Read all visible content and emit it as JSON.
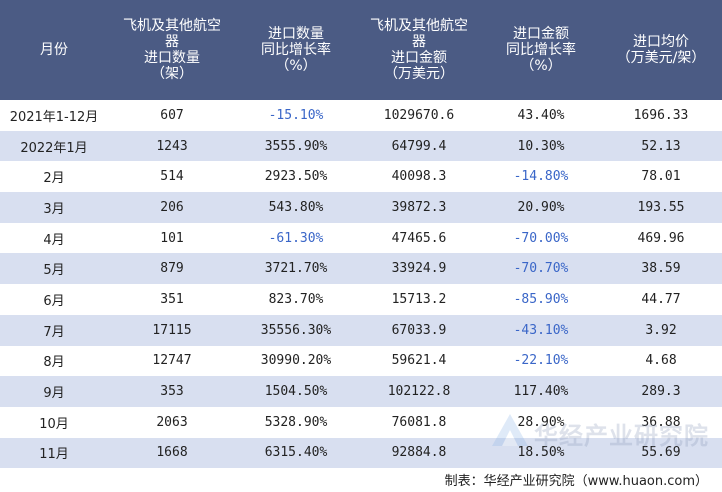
{
  "headers": [
    [
      "月份"
    ],
    [
      "飞机及其他航空",
      "器",
      "进口数量",
      "（架）"
    ],
    [
      "进口数量",
      "同比增长率",
      "（%）"
    ],
    [
      "飞机及其他航空",
      "器",
      "进口金额",
      "（万美元）"
    ],
    [
      "进口金额",
      "同比增长率",
      "（%）"
    ],
    [
      "进口均价",
      "（万美元/架）"
    ]
  ],
  "rows": [
    {
      "month": "2021年1-12月",
      "qty": "607",
      "qty_yoy": "-15.10%",
      "amount": "1029670.6",
      "amount_yoy": "43.40%",
      "price": "1696.33"
    },
    {
      "month": "2022年1月",
      "qty": "1243",
      "qty_yoy": "3555.90%",
      "amount": "64799.4",
      "amount_yoy": "10.30%",
      "price": "52.13"
    },
    {
      "month": "2月",
      "qty": "514",
      "qty_yoy": "2923.50%",
      "amount": "40098.3",
      "amount_yoy": "-14.80%",
      "price": "78.01"
    },
    {
      "month": "3月",
      "qty": "206",
      "qty_yoy": "543.80%",
      "amount": "39872.3",
      "amount_yoy": "20.90%",
      "price": "193.55"
    },
    {
      "month": "4月",
      "qty": "101",
      "qty_yoy": "-61.30%",
      "amount": "47465.6",
      "amount_yoy": "-70.00%",
      "price": "469.96"
    },
    {
      "month": "5月",
      "qty": "879",
      "qty_yoy": "3721.70%",
      "amount": "33924.9",
      "amount_yoy": "-70.70%",
      "price": "38.59"
    },
    {
      "month": "6月",
      "qty": "351",
      "qty_yoy": "823.70%",
      "amount": "15713.2",
      "amount_yoy": "-85.90%",
      "price": "44.77"
    },
    {
      "month": "7月",
      "qty": "17115",
      "qty_yoy": "35556.30%",
      "amount": "67033.9",
      "amount_yoy": "-43.10%",
      "price": "3.92"
    },
    {
      "month": "8月",
      "qty": "12747",
      "qty_yoy": "30990.20%",
      "amount": "59621.4",
      "amount_yoy": "-22.10%",
      "price": "4.68"
    },
    {
      "month": "9月",
      "qty": "353",
      "qty_yoy": "1504.50%",
      "amount": "102122.8",
      "amount_yoy": "117.40%",
      "price": "289.3"
    },
    {
      "month": "10月",
      "qty": "2063",
      "qty_yoy": "5328.90%",
      "amount": "76081.8",
      "amount_yoy": "28.90%",
      "price": "36.88"
    },
    {
      "month": "11月",
      "qty": "1668",
      "qty_yoy": "6315.40%",
      "amount": "92884.8",
      "amount_yoy": "18.50%",
      "price": "55.69"
    }
  ],
  "footer": "制表：华经产业研究院（www.huaon.com）",
  "watermark": "华经产业研究院",
  "colors": {
    "header_bg": "#4b5b84",
    "stripe": "#d8dff0",
    "negative": "#3a66c8"
  }
}
